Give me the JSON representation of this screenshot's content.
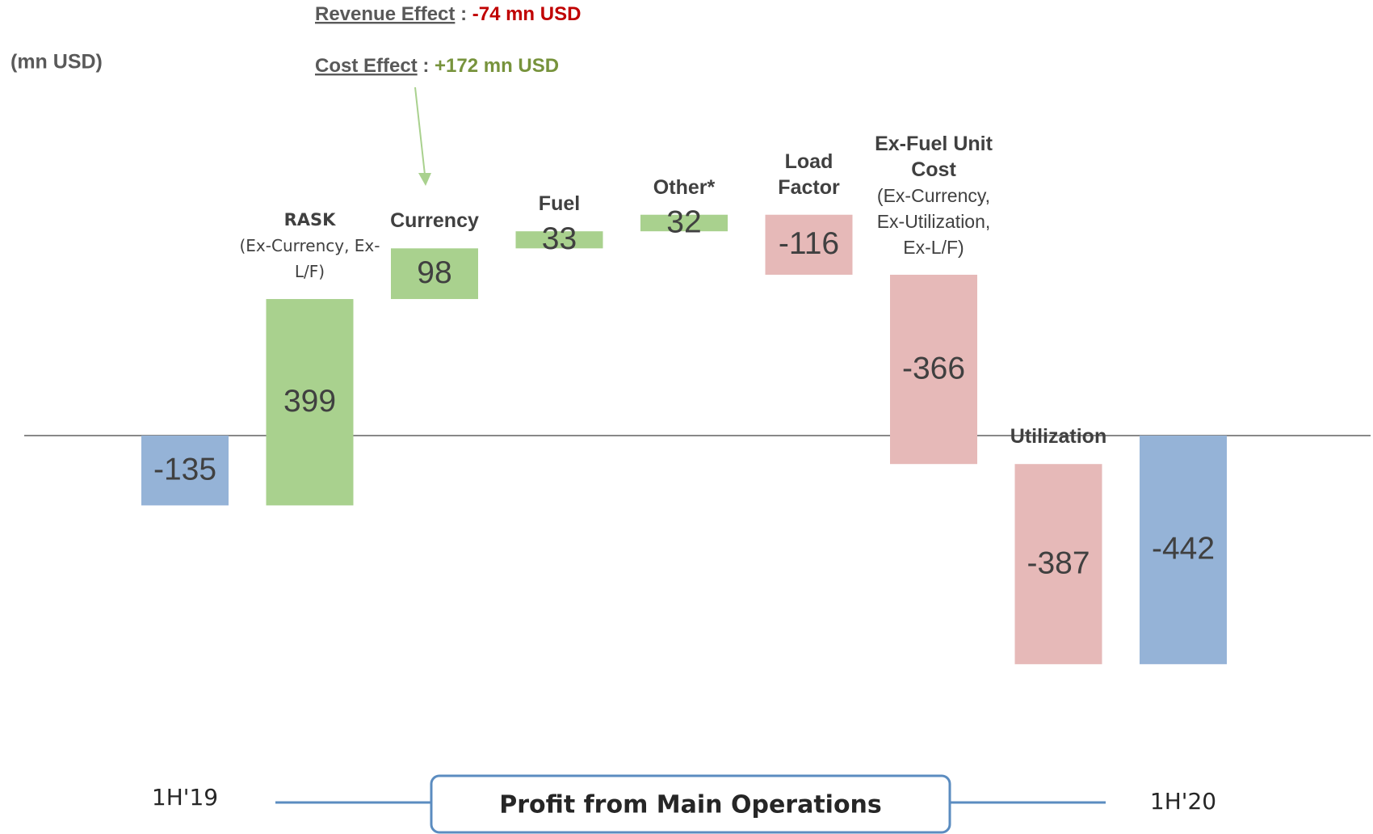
{
  "chart_data": {
    "type": "waterfall",
    "unit_label": "(mn USD)",
    "revenue_effect": {
      "label": "Revenue Effect",
      "separator": ":",
      "value": "-74 mn USD"
    },
    "cost_effect": {
      "label": "Cost Effect",
      "separator": ":",
      "value": "+172 mn USD"
    },
    "categories": [
      "1H'19",
      "RASK",
      "Currency",
      "Fuel",
      "Other*",
      "Load Factor",
      "Ex-Fuel Unit Cost",
      "Utilization",
      "1H'20"
    ],
    "category_notes": [
      null,
      "(Ex-Currency, Ex-L/F)",
      null,
      null,
      null,
      null,
      "(Ex-Currency, Ex-Utilization, Ex-L/F)",
      null,
      null
    ],
    "values": [
      -135,
      399,
      98,
      33,
      32,
      -116,
      -366,
      -387,
      -442
    ],
    "colors": {
      "total": "#95b3d7",
      "increase": "#a9d18e",
      "decrease": "#e6b9b8"
    },
    "bracket_label": "Profit from Main Operations"
  }
}
